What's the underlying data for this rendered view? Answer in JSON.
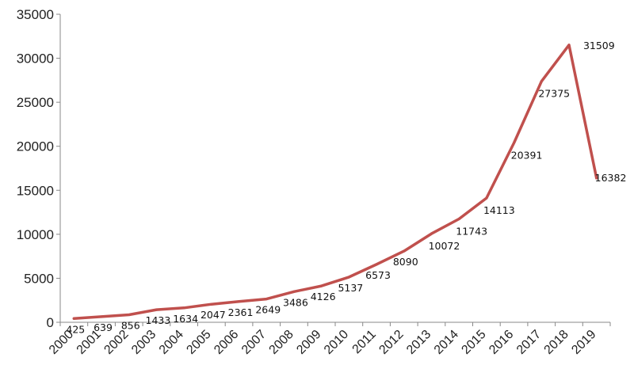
{
  "chart_data": {
    "type": "line",
    "title": "",
    "xlabel": "",
    "ylabel": "",
    "ylim": [
      0,
      35000
    ],
    "yticks": [
      0,
      5000,
      10000,
      15000,
      20000,
      25000,
      30000,
      35000
    ],
    "ytick_labels": [
      "0",
      "5000",
      "10000",
      "15000",
      "20000",
      "25000",
      "30000",
      "35000"
    ],
    "categories": [
      "2000",
      "2001",
      "2002",
      "2003",
      "2004",
      "2005",
      "2006",
      "2007",
      "2008",
      "2009",
      "2010",
      "2011",
      "2012",
      "2013",
      "2014",
      "2015",
      "2016",
      "2017",
      "2018",
      "2019"
    ],
    "grid": false,
    "legend": "none",
    "series": [
      {
        "name": "",
        "color": "#c0504d",
        "values": [
          425,
          639,
          856,
          1433,
          1634,
          2047,
          2361,
          2649,
          3486,
          4126,
          5137,
          6573,
          8090,
          10072,
          11743,
          14113,
          20391,
          27375,
          31509,
          16382
        ],
        "labels": [
          "425",
          "639",
          "856",
          "1433",
          "1634",
          "2047",
          "2361",
          "2649",
          "3486",
          "4126",
          "5137",
          "6573",
          "8090",
          "10072",
          "11743",
          "14113",
          "20391",
          "27375",
          "31509",
          "16382"
        ]
      }
    ]
  }
}
